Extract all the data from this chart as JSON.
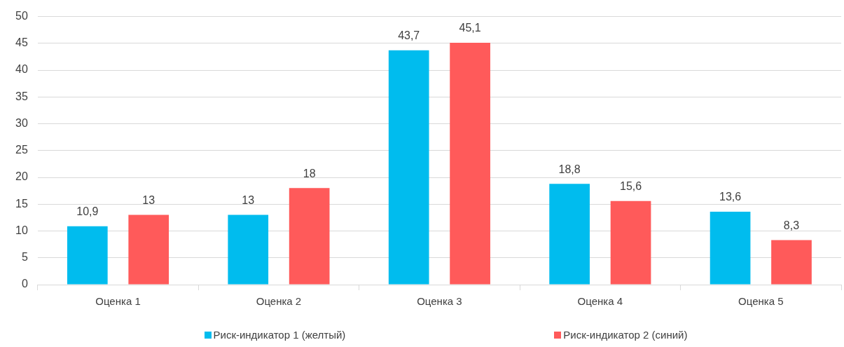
{
  "chart_data": {
    "type": "bar",
    "categories": [
      "Оценка 1",
      "Оценка 2",
      "Оценка 3",
      "Оценка 4",
      "Оценка 5"
    ],
    "series": [
      {
        "name": "Риск-индикатор 1 (желтый)",
        "color": "#00bcee",
        "values": [
          10.9,
          13,
          43.7,
          18.8,
          13.6
        ],
        "value_labels": [
          "10,9",
          "13",
          "43,7",
          "18,8",
          "13,6"
        ]
      },
      {
        "name": "Риск-индикатор 2 (синий)",
        "color": "#ff5a5a",
        "values": [
          13,
          18,
          45.1,
          15.6,
          8.3
        ],
        "value_labels": [
          "13",
          "18",
          "45,1",
          "15,6",
          "8,3"
        ]
      }
    ],
    "ylim": [
      0,
      50
    ],
    "yticks": [
      0,
      5,
      10,
      15,
      20,
      25,
      30,
      35,
      40,
      45,
      50
    ],
    "grid": "y",
    "legend": "bottom"
  }
}
